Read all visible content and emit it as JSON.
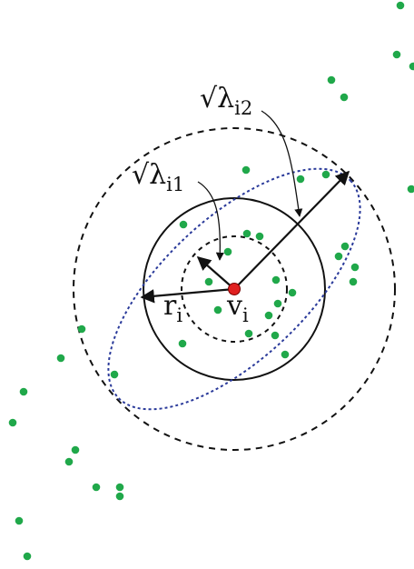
{
  "labels": {
    "sqrt_lambda_i2": {
      "sqrt": "√",
      "lambda": "λ",
      "sub": "i2"
    },
    "sqrt_lambda_i1": {
      "sqrt": "√",
      "lambda": "λ",
      "sub": "i1"
    },
    "r_i": {
      "base": "r",
      "sub": "i"
    },
    "v_i": {
      "base": "v",
      "sub": "i"
    }
  },
  "colors": {
    "point": "#20a84a",
    "center": "#e02020",
    "ellipse": "#2a3a9a",
    "ink": "#111111"
  }
}
